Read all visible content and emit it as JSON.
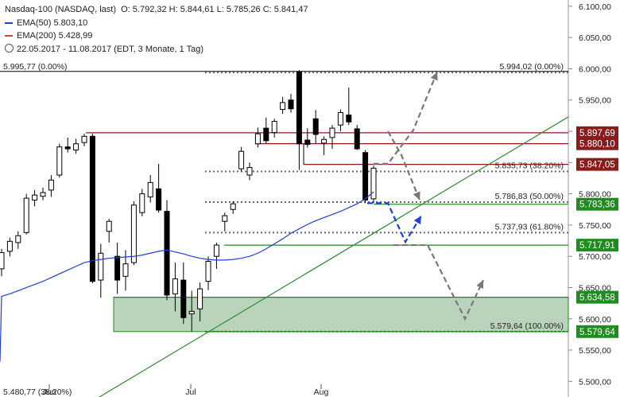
{
  "header": {
    "title": "Nasdaq-100 (NASDAQ, last)",
    "ohlc": "O: 5.792,32  H: 5.844,61  L: 5.785,26  C: 5.841,47",
    "ema50": "EMA(50)  5.803,10",
    "ema200": "EMA(200)  5.428,99",
    "range": "22.05.2017 - 11.08.2017  (EDT, 3 Monate, 1 Tag)",
    "ema50_color": "#1f3fd6",
    "ema200_color": "#d9453a"
  },
  "chart_data": {
    "type": "candlestick",
    "ylim": [
      5475,
      6110
    ],
    "y_ticks": [
      "6.100,00",
      "6.050,00",
      "6.000,00",
      "5.950,00",
      "5.900,00",
      "5.850,00",
      "5.800,00",
      "5.750,00",
      "5.700,00",
      "5.650,00",
      "5.600,00",
      "5.550,00",
      "5.500,00"
    ],
    "x_ticks": [
      "Jun",
      "Jul",
      "Aug"
    ],
    "bull_color": "#ffffff",
    "bear_color": "#000000",
    "candles": [
      {
        "o": 5680,
        "h": 5712,
        "l": 5668,
        "c": 5706
      },
      {
        "o": 5708,
        "h": 5730,
        "l": 5700,
        "c": 5724
      },
      {
        "o": 5722,
        "h": 5740,
        "l": 5712,
        "c": 5733
      },
      {
        "o": 5738,
        "h": 5800,
        "l": 5735,
        "c": 5793
      },
      {
        "o": 5790,
        "h": 5806,
        "l": 5780,
        "c": 5798
      },
      {
        "o": 5796,
        "h": 5810,
        "l": 5790,
        "c": 5802
      },
      {
        "o": 5806,
        "h": 5830,
        "l": 5795,
        "c": 5822
      },
      {
        "o": 5830,
        "h": 5880,
        "l": 5826,
        "c": 5875
      },
      {
        "o": 5875,
        "h": 5890,
        "l": 5866,
        "c": 5872
      },
      {
        "o": 5870,
        "h": 5888,
        "l": 5864,
        "c": 5880
      },
      {
        "o": 5882,
        "h": 5896,
        "l": 5876,
        "c": 5892
      },
      {
        "o": 5892,
        "h": 5896,
        "l": 5657,
        "c": 5660
      },
      {
        "o": 5662,
        "h": 5720,
        "l": 5634,
        "c": 5705
      },
      {
        "o": 5740,
        "h": 5760,
        "l": 5722,
        "c": 5756
      },
      {
        "o": 5700,
        "h": 5722,
        "l": 5640,
        "c": 5662
      },
      {
        "o": 5668,
        "h": 5710,
        "l": 5645,
        "c": 5688
      },
      {
        "o": 5690,
        "h": 5788,
        "l": 5686,
        "c": 5782
      },
      {
        "o": 5770,
        "h": 5808,
        "l": 5764,
        "c": 5800
      },
      {
        "o": 5795,
        "h": 5830,
        "l": 5786,
        "c": 5818
      },
      {
        "o": 5808,
        "h": 5848,
        "l": 5770,
        "c": 5774
      },
      {
        "o": 5772,
        "h": 5790,
        "l": 5630,
        "c": 5638
      },
      {
        "o": 5640,
        "h": 5690,
        "l": 5612,
        "c": 5664
      },
      {
        "o": 5662,
        "h": 5690,
        "l": 5592,
        "c": 5602
      },
      {
        "o": 5608,
        "h": 5645,
        "l": 5580,
        "c": 5612
      },
      {
        "o": 5616,
        "h": 5658,
        "l": 5596,
        "c": 5648
      },
      {
        "o": 5660,
        "h": 5700,
        "l": 5646,
        "c": 5692
      },
      {
        "o": 5700,
        "h": 5722,
        "l": 5680,
        "c": 5718
      },
      {
        "o": 5756,
        "h": 5770,
        "l": 5740,
        "c": 5765
      },
      {
        "o": 5775,
        "h": 5788,
        "l": 5768,
        "c": 5784
      },
      {
        "o": 5840,
        "h": 5875,
        "l": 5836,
        "c": 5868
      },
      {
        "o": 5830,
        "h": 5850,
        "l": 5822,
        "c": 5842
      },
      {
        "o": 5880,
        "h": 5906,
        "l": 5874,
        "c": 5896
      },
      {
        "o": 5905,
        "h": 5922,
        "l": 5880,
        "c": 5885
      },
      {
        "o": 5898,
        "h": 5920,
        "l": 5890,
        "c": 5916
      },
      {
        "o": 5935,
        "h": 5955,
        "l": 5928,
        "c": 5946
      },
      {
        "o": 5950,
        "h": 5960,
        "l": 5930,
        "c": 5936
      },
      {
        "o": 5995,
        "h": 5998,
        "l": 5838,
        "c": 5880
      },
      {
        "o": 5886,
        "h": 5905,
        "l": 5874,
        "c": 5879
      },
      {
        "o": 5920,
        "h": 5934,
        "l": 5880,
        "c": 5895
      },
      {
        "o": 5881,
        "h": 5892,
        "l": 5862,
        "c": 5887
      },
      {
        "o": 5890,
        "h": 5910,
        "l": 5872,
        "c": 5905
      },
      {
        "o": 5910,
        "h": 5935,
        "l": 5900,
        "c": 5930
      },
      {
        "o": 5926,
        "h": 5970,
        "l": 5910,
        "c": 5915
      },
      {
        "o": 5904,
        "h": 5910,
        "l": 5870,
        "c": 5872
      },
      {
        "o": 5866,
        "h": 5870,
        "l": 5785,
        "c": 5790
      },
      {
        "o": 5792,
        "h": 5845,
        "l": 5785,
        "c": 5841
      }
    ],
    "ema50": [
      5636,
      5640,
      5645,
      5650,
      5655,
      5660,
      5666,
      5672,
      5678,
      5684,
      5690,
      5693,
      5695,
      5697,
      5698,
      5699,
      5700,
      5702,
      5705,
      5708,
      5710,
      5707,
      5704,
      5700,
      5697,
      5695,
      5694,
      5694,
      5695,
      5697,
      5700,
      5705,
      5712,
      5720,
      5728,
      5737,
      5744,
      5751,
      5757,
      5762,
      5767,
      5772,
      5778,
      5784,
      5792,
      5803
    ],
    "levels": [
      {
        "name": "5.994,02 (0.00%)",
        "value": 5994.02
      },
      {
        "name": "5.835,73 (38.20%)",
        "value": 5835.73
      },
      {
        "name": "5.786,83 (50.00%)",
        "value": 5786.83
      },
      {
        "name": "5.737,93 (61.80%)",
        "value": 5737.93
      },
      {
        "name": "5.579,64 (100.00%)",
        "value": 5579.64
      }
    ],
    "horizontal_lines": [
      {
        "value": 5897.69,
        "label": "5.897,69",
        "color": "#8b1a1a"
      },
      {
        "value": 5880.1,
        "label": "5.880,10",
        "color": "#8b1a1a"
      },
      {
        "value": 5847.05,
        "label": "5.847,05",
        "color": "#8b1a1a"
      },
      {
        "value": 5783.36,
        "label": "5.783,36",
        "color": "#1e8c1e"
      },
      {
        "value": 5717.91,
        "label": "5.717,91",
        "color": "#1e8c1e"
      },
      {
        "value": 5634.58,
        "label": "5.634,58",
        "color": "#1e8c1e"
      },
      {
        "value": 5579.64,
        "label": "5.579,64",
        "color": "#1e8c1e"
      }
    ],
    "left_labels": [
      "5.995,77 (0.00%)",
      "5.480,77 (38.20%)"
    ],
    "support_zone": [
      5579.64,
      5634.58
    ],
    "zone_color": "#b9d4bb",
    "trendline_color": "#2e8b2e",
    "scenario_gray": "#777777",
    "scenario_blue": "#1a3fe0"
  }
}
